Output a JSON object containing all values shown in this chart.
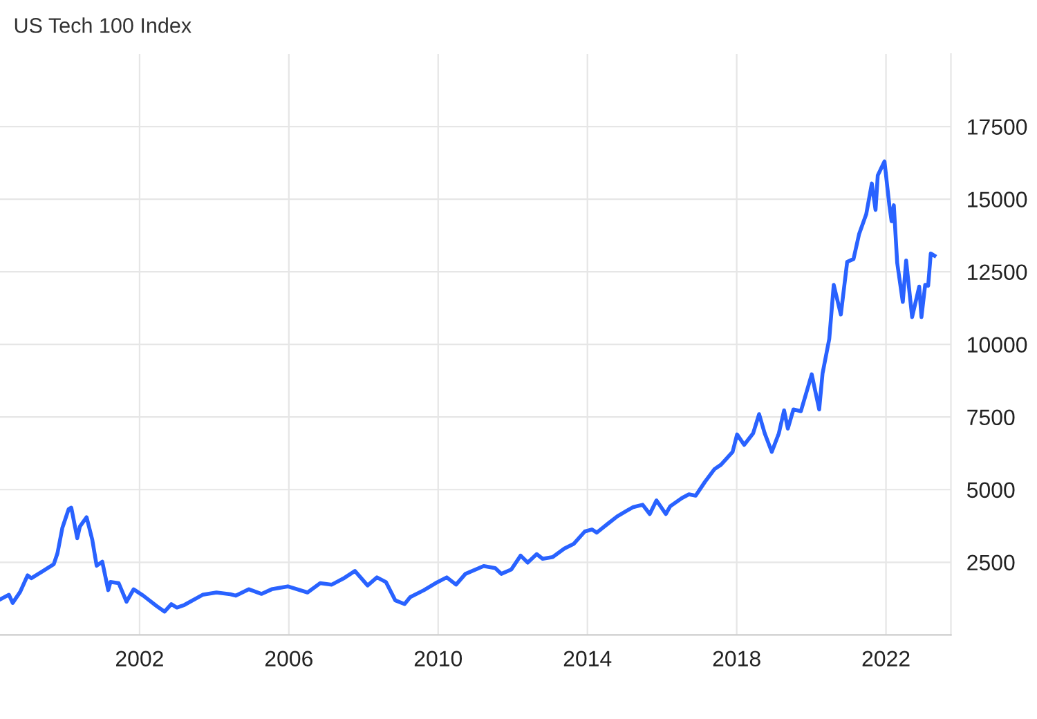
{
  "chart_data": {
    "type": "line",
    "title": "US Tech 100 Index",
    "x": [
      1998.26,
      1998.5,
      1998.6,
      1998.8,
      1999.0,
      1999.1,
      1999.4,
      1999.7,
      1999.8,
      1999.93,
      2000.1,
      2000.17,
      2000.33,
      2000.4,
      2000.58,
      2000.73,
      2000.85,
      2001.0,
      2001.16,
      2001.22,
      2001.44,
      2001.65,
      2001.84,
      2002.1,
      2002.46,
      2002.67,
      2002.85,
      2003.0,
      2003.2,
      2003.69,
      2004.06,
      2004.43,
      2004.58,
      2004.93,
      2005.27,
      2005.54,
      2005.97,
      2006.5,
      2006.84,
      2007.15,
      2007.46,
      2007.77,
      2008.11,
      2008.36,
      2008.6,
      2008.85,
      2009.1,
      2009.25,
      2009.62,
      2009.93,
      2010.23,
      2010.48,
      2010.73,
      2011.22,
      2011.53,
      2011.69,
      2011.96,
      2012.21,
      2012.4,
      2012.64,
      2012.8,
      2013.07,
      2013.38,
      2013.63,
      2013.93,
      2014.12,
      2014.25,
      2014.56,
      2014.8,
      2015.05,
      2015.23,
      2015.48,
      2015.67,
      2015.85,
      2016.1,
      2016.22,
      2016.53,
      2016.72,
      2016.9,
      2017.15,
      2017.4,
      2017.58,
      2017.89,
      2018.01,
      2018.2,
      2018.44,
      2018.6,
      2018.75,
      2018.94,
      2019.13,
      2019.27,
      2019.37,
      2019.52,
      2019.72,
      2020.01,
      2020.21,
      2020.3,
      2020.48,
      2020.6,
      2020.79,
      2020.96,
      2021.13,
      2021.28,
      2021.47,
      2021.62,
      2021.72,
      2021.78,
      2021.96,
      2022.09,
      2022.15,
      2022.21,
      2022.3,
      2022.45,
      2022.54,
      2022.7,
      2022.89,
      2022.95,
      2023.05,
      2023.13,
      2023.2,
      2023.3
    ],
    "series": [
      {
        "color": "#2962ff",
        "values": [
          1220,
          1380,
          1100,
          1480,
          2050,
          1950,
          2190,
          2430,
          2810,
          3680,
          4330,
          4380,
          3330,
          3730,
          4050,
          3290,
          2380,
          2520,
          1540,
          1820,
          1780,
          1140,
          1570,
          1350,
          990,
          800,
          1060,
          940,
          1030,
          1380,
          1460,
          1400,
          1350,
          1570,
          1410,
          1570,
          1670,
          1460,
          1780,
          1730,
          1940,
          2200,
          1700,
          1980,
          1820,
          1190,
          1060,
          1300,
          1540,
          1780,
          1980,
          1730,
          2100,
          2370,
          2300,
          2100,
          2250,
          2730,
          2490,
          2780,
          2620,
          2680,
          2970,
          3130,
          3560,
          3630,
          3520,
          3840,
          4080,
          4270,
          4400,
          4480,
          4160,
          4630,
          4160,
          4430,
          4710,
          4840,
          4790,
          5270,
          5700,
          5860,
          6300,
          6900,
          6540,
          6940,
          7600,
          6940,
          6300,
          6940,
          7730,
          7100,
          7760,
          7700,
          8970,
          7760,
          9000,
          10190,
          12050,
          11030,
          12840,
          12940,
          13800,
          14480,
          15540,
          14630,
          15820,
          16300,
          14790,
          14240,
          14790,
          12810,
          11460,
          12890,
          10940,
          11990,
          10940,
          12050,
          12020,
          13130,
          13050
        ]
      }
    ],
    "xlim": [
      1998.26,
      2023.74
    ],
    "xticks": [
      {
        "value": 2002,
        "label": "2002"
      },
      {
        "value": 2006,
        "label": "2006"
      },
      {
        "value": 2010,
        "label": "2010"
      },
      {
        "value": 2014,
        "label": "2014"
      },
      {
        "value": 2018,
        "label": "2018"
      },
      {
        "value": 2022,
        "label": "2022"
      }
    ],
    "ylim": [
      0,
      20000
    ],
    "yticks": [
      2500,
      5000,
      7500,
      10000,
      12500,
      15000,
      17500
    ],
    "grid": true,
    "marker": "none",
    "line_style": "solid"
  }
}
